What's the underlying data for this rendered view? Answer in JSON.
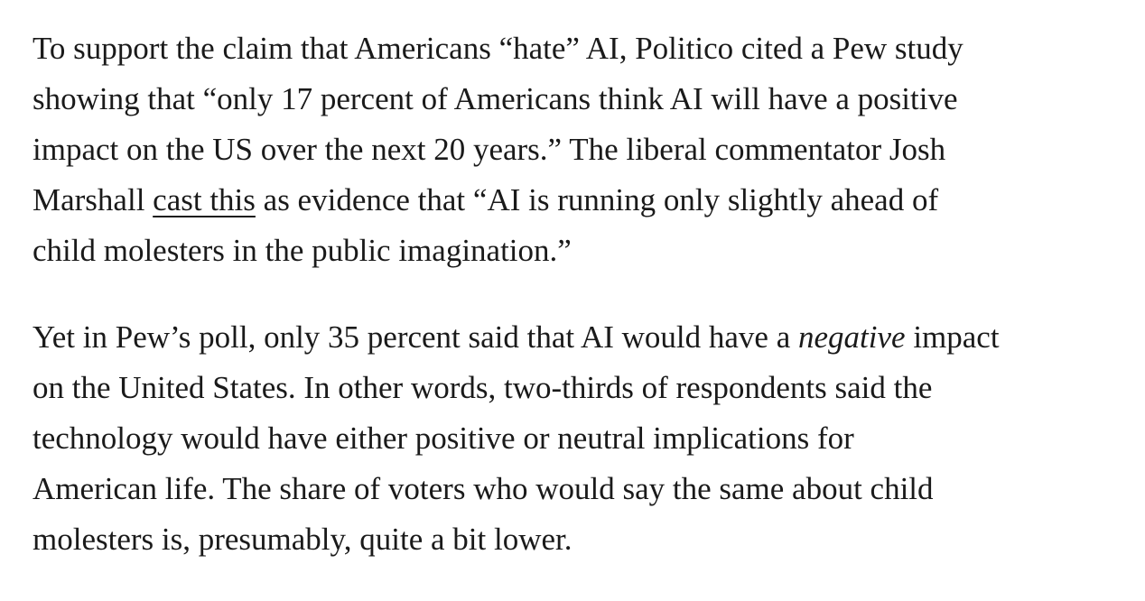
{
  "article": {
    "p1": {
      "lines": [
        "To support the claim that Americans “hate” AI, Politico cited a Pew study",
        "showing that “only 17 percent of Americans think AI will have a positive",
        "impact on the US over the next 20 years.” The liberal commentator Josh"
      ],
      "line4_before": "Marshall ",
      "link_text": "cast this",
      "line4_after": " as evidence that “AI is running only slightly ahead of",
      "line5": "child molesters in the public imagination.”"
    },
    "p2": {
      "line1_before": "Yet in Pew’s poll, only 35 percent said that AI would have a ",
      "line1_em": "negative",
      "line1_after": " impact",
      "lines": [
        "on the United States. In other words, two-thirds of respondents said the",
        "technology would have either positive or neutral implications for",
        "American life. The share of voters who would say the same about child",
        "molesters is, presumably, quite a bit lower."
      ]
    }
  }
}
